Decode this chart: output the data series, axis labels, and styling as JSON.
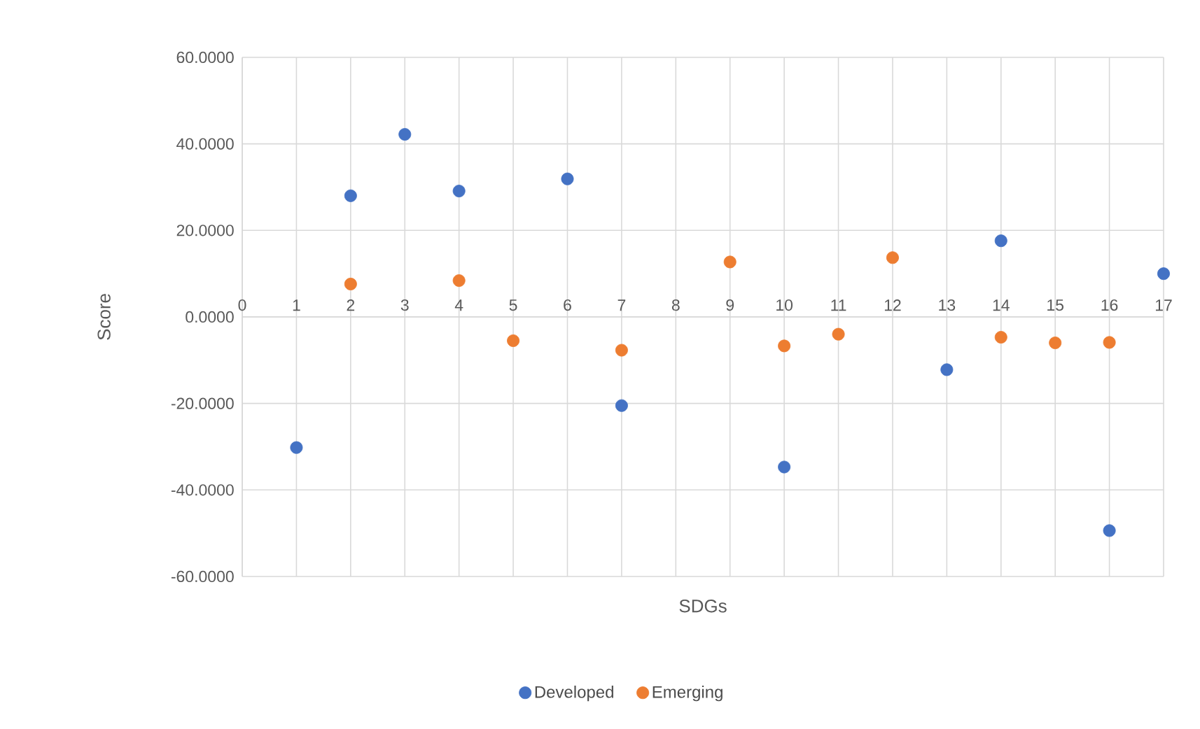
{
  "chart_data": {
    "type": "scatter",
    "xlabel": "SDGs",
    "ylabel": "Score",
    "marker": "circle",
    "grid": true,
    "legend": "bottom",
    "xlim": [
      0,
      17
    ],
    "xticks": [
      0,
      1,
      2,
      3,
      4,
      5,
      6,
      7,
      8,
      9,
      10,
      11,
      12,
      13,
      14,
      15,
      16,
      17
    ],
    "ylim": [
      -60,
      60
    ],
    "yticks": [
      {
        "value": -60,
        "label": "-60.0000"
      },
      {
        "value": -40,
        "label": "-40.0000"
      },
      {
        "value": -20,
        "label": "-20.0000"
      },
      {
        "value": 0,
        "label": "0.0000"
      },
      {
        "value": 20,
        "label": "20.0000"
      },
      {
        "value": 40,
        "label": "40.0000"
      },
      {
        "value": 60,
        "label": "60.0000"
      }
    ],
    "series": [
      {
        "name": "Developed",
        "color": "#4472c4",
        "x": [
          1,
          2,
          3,
          4,
          6,
          7,
          10,
          13,
          14,
          16,
          17
        ],
        "values": [
          -30.2,
          28.0,
          42.2,
          29.1,
          31.9,
          -20.5,
          -34.7,
          -12.2,
          17.6,
          -49.4,
          10.0
        ]
      },
      {
        "name": "Emerging",
        "color": "#ed7d31",
        "x": [
          2,
          4,
          5,
          7,
          9,
          10,
          11,
          12,
          14,
          15,
          16
        ],
        "values": [
          7.6,
          8.4,
          -5.5,
          -7.7,
          12.7,
          -6.7,
          -4.0,
          13.7,
          -4.7,
          -6.0,
          -5.9
        ]
      }
    ]
  }
}
